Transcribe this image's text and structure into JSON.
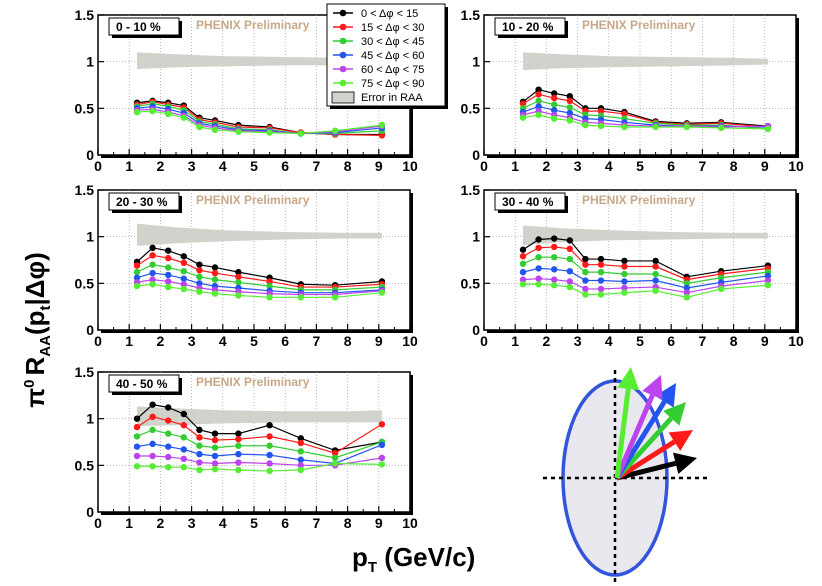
{
  "figure": {
    "ylabel_main": "π",
    "ylabel_sup": "0",
    "ylabel_r": "R",
    "ylabel_r_sub": "AA",
    "ylabel_rest_open": "(p",
    "ylabel_rest_sub": "t",
    "ylabel_rest_close": "|Δφ)",
    "xlabel_main": "p",
    "xlabel_sub": "T",
    "xlabel_rest": " (GeV/c)",
    "watermark": "PHENIX Preliminary"
  },
  "colors": {
    "series": [
      "#000000",
      "#ff1a1a",
      "#33cc33",
      "#2255ee",
      "#bb44ee",
      "#55ee33"
    ],
    "band": "#cfd3cc",
    "ellipse": "#3355dd",
    "ellipse_fill": "#e8e8ee",
    "watermark": "#c8a888"
  },
  "legend": {
    "entries": [
      "0 < Δφ < 15",
      "15 < Δφ < 30",
      "30 < Δφ < 45",
      "45 < Δφ < 60",
      "60 < Δφ < 75",
      "75 < Δφ < 90"
    ],
    "band_label": "Error in RAA"
  },
  "diagram": {
    "arrows": [
      "black-arrow",
      "red-arrow",
      "green-arrow",
      "blue-arrow",
      "violet-arrow",
      "lightgreen-arrow"
    ]
  },
  "chart_data": [
    {
      "type": "line",
      "panel_label": "0 - 10 %",
      "xlim": [
        0,
        10
      ],
      "ylim": [
        0,
        1.5
      ],
      "xticks": [
        0,
        1,
        2,
        3,
        4,
        5,
        6,
        7,
        8,
        9,
        10
      ],
      "yticks": [
        0,
        0.5,
        1,
        1.5
      ],
      "x": [
        1.25,
        1.75,
        2.25,
        2.75,
        3.25,
        3.75,
        4.5,
        5.5,
        6.5,
        7.6,
        9.1
      ],
      "series": [
        {
          "name": "0 < Δφ < 15",
          "values": [
            0.56,
            0.58,
            0.56,
            0.53,
            0.4,
            0.37,
            0.32,
            0.3,
            0.24,
            0.22,
            0.22
          ]
        },
        {
          "name": "15 < Δφ < 30",
          "values": [
            0.54,
            0.57,
            0.54,
            0.51,
            0.38,
            0.35,
            0.3,
            0.29,
            0.24,
            0.22,
            0.21
          ]
        },
        {
          "name": "30 < Δφ < 45",
          "values": [
            0.52,
            0.55,
            0.52,
            0.48,
            0.36,
            0.33,
            0.28,
            0.27,
            0.23,
            0.23,
            0.26
          ]
        },
        {
          "name": "45 < Δφ < 60",
          "values": [
            0.5,
            0.52,
            0.49,
            0.45,
            0.34,
            0.31,
            0.27,
            0.26,
            0.23,
            0.24,
            0.29
          ]
        },
        {
          "name": "60 < Δφ < 75",
          "values": [
            0.48,
            0.49,
            0.46,
            0.42,
            0.32,
            0.29,
            0.26,
            0.25,
            0.23,
            0.25,
            0.31
          ]
        },
        {
          "name": "75 < Δφ < 90",
          "values": [
            0.46,
            0.47,
            0.44,
            0.4,
            0.3,
            0.27,
            0.25,
            0.24,
            0.23,
            0.26,
            0.32
          ]
        }
      ],
      "band": {
        "x": [
          1.25,
          2.5,
          4,
          6,
          8,
          9.1
        ],
        "lo": [
          0.92,
          0.94,
          0.95,
          0.96,
          0.96,
          0.97
        ],
        "hi": [
          1.1,
          1.08,
          1.06,
          1.05,
          1.04,
          1.03
        ]
      },
      "has_legend": true
    },
    {
      "type": "line",
      "panel_label": "10 - 20 %",
      "xlim": [
        0,
        10
      ],
      "ylim": [
        0,
        1.5
      ],
      "xticks": [
        0,
        1,
        2,
        3,
        4,
        5,
        6,
        7,
        8,
        9,
        10
      ],
      "yticks": [
        0,
        0.5,
        1,
        1.5
      ],
      "x": [
        1.25,
        1.75,
        2.25,
        2.75,
        3.25,
        3.75,
        4.5,
        5.5,
        6.5,
        7.6,
        9.1
      ],
      "series": [
        {
          "name": "0 < Δφ < 15",
          "values": [
            0.57,
            0.7,
            0.66,
            0.63,
            0.5,
            0.5,
            0.46,
            0.36,
            0.34,
            0.35,
            0.31
          ]
        },
        {
          "name": "15 < Δφ < 30",
          "values": [
            0.55,
            0.65,
            0.61,
            0.58,
            0.47,
            0.47,
            0.44,
            0.35,
            0.33,
            0.34,
            0.3
          ]
        },
        {
          "name": "30 < Δφ < 45",
          "values": [
            0.5,
            0.58,
            0.54,
            0.51,
            0.43,
            0.42,
            0.39,
            0.34,
            0.32,
            0.32,
            0.28
          ]
        },
        {
          "name": "45 < Δφ < 60",
          "values": [
            0.46,
            0.52,
            0.48,
            0.45,
            0.39,
            0.38,
            0.35,
            0.32,
            0.31,
            0.31,
            0.3
          ]
        },
        {
          "name": "60 < Δφ < 75",
          "values": [
            0.43,
            0.47,
            0.43,
            0.4,
            0.35,
            0.34,
            0.32,
            0.31,
            0.31,
            0.3,
            0.31
          ]
        },
        {
          "name": "75 < Δφ < 90",
          "values": [
            0.4,
            0.43,
            0.39,
            0.37,
            0.32,
            0.31,
            0.3,
            0.3,
            0.3,
            0.29,
            0.28
          ]
        }
      ],
      "band": {
        "x": [
          1.25,
          2.5,
          4,
          6,
          8,
          9.1
        ],
        "lo": [
          0.91,
          0.93,
          0.94,
          0.95,
          0.96,
          0.97
        ],
        "hi": [
          1.1,
          1.08,
          1.06,
          1.05,
          1.04,
          1.03
        ]
      },
      "has_legend": false
    },
    {
      "type": "line",
      "panel_label": "20 - 30 %",
      "xlim": [
        0,
        10
      ],
      "ylim": [
        0,
        1.5
      ],
      "xticks": [
        0,
        1,
        2,
        3,
        4,
        5,
        6,
        7,
        8,
        9,
        10
      ],
      "yticks": [
        0,
        0.5,
        1,
        1.5
      ],
      "x": [
        1.25,
        1.75,
        2.25,
        2.75,
        3.25,
        3.75,
        4.5,
        5.5,
        6.5,
        7.6,
        9.1
      ],
      "series": [
        {
          "name": "0 < Δφ < 15",
          "values": [
            0.73,
            0.88,
            0.85,
            0.79,
            0.7,
            0.67,
            0.62,
            0.56,
            0.49,
            0.48,
            0.52
          ]
        },
        {
          "name": "15 < Δφ < 30",
          "values": [
            0.69,
            0.8,
            0.77,
            0.72,
            0.64,
            0.61,
            0.57,
            0.52,
            0.46,
            0.46,
            0.49
          ]
        },
        {
          "name": "30 < Δφ < 45",
          "values": [
            0.62,
            0.7,
            0.67,
            0.63,
            0.57,
            0.54,
            0.51,
            0.47,
            0.43,
            0.43,
            0.46
          ]
        },
        {
          "name": "45 < Δφ < 60",
          "values": [
            0.56,
            0.61,
            0.59,
            0.55,
            0.5,
            0.47,
            0.45,
            0.42,
            0.4,
            0.4,
            0.43
          ]
        },
        {
          "name": "60 < Δφ < 75",
          "values": [
            0.51,
            0.54,
            0.52,
            0.49,
            0.45,
            0.43,
            0.41,
            0.39,
            0.38,
            0.38,
            0.42
          ]
        },
        {
          "name": "75 < Δφ < 90",
          "values": [
            0.47,
            0.49,
            0.46,
            0.44,
            0.41,
            0.39,
            0.37,
            0.35,
            0.35,
            0.35,
            0.4
          ]
        }
      ],
      "band": {
        "x": [
          1.25,
          2.5,
          4,
          6,
          8,
          9.1
        ],
        "lo": [
          0.9,
          0.93,
          0.95,
          0.97,
          0.98,
          0.98
        ],
        "hi": [
          1.14,
          1.1,
          1.07,
          1.05,
          1.04,
          1.04
        ]
      },
      "has_legend": false
    },
    {
      "type": "line",
      "panel_label": "30 - 40 %",
      "xlim": [
        0,
        10
      ],
      "ylim": [
        0,
        1.5
      ],
      "xticks": [
        0,
        1,
        2,
        3,
        4,
        5,
        6,
        7,
        8,
        9,
        10
      ],
      "yticks": [
        0,
        0.5,
        1,
        1.5
      ],
      "x": [
        1.25,
        1.75,
        2.25,
        2.75,
        3.25,
        3.75,
        4.5,
        5.5,
        6.5,
        7.6,
        9.1
      ],
      "series": [
        {
          "name": "0 < Δφ < 15",
          "values": [
            0.86,
            0.97,
            0.98,
            0.96,
            0.76,
            0.76,
            0.74,
            0.74,
            0.57,
            0.63,
            0.69
          ]
        },
        {
          "name": "15 < Δφ < 30",
          "values": [
            0.79,
            0.88,
            0.89,
            0.87,
            0.7,
            0.7,
            0.68,
            0.68,
            0.54,
            0.6,
            0.66
          ]
        },
        {
          "name": "30 < Δφ < 45",
          "values": [
            0.71,
            0.78,
            0.78,
            0.76,
            0.62,
            0.62,
            0.6,
            0.6,
            0.5,
            0.56,
            0.62
          ]
        },
        {
          "name": "45 < Δφ < 60",
          "values": [
            0.62,
            0.66,
            0.65,
            0.63,
            0.53,
            0.53,
            0.52,
            0.53,
            0.45,
            0.51,
            0.58
          ]
        },
        {
          "name": "60 < Δφ < 75",
          "values": [
            0.54,
            0.55,
            0.54,
            0.52,
            0.44,
            0.44,
            0.45,
            0.46,
            0.4,
            0.47,
            0.53
          ]
        },
        {
          "name": "75 < Δφ < 90",
          "values": [
            0.49,
            0.49,
            0.48,
            0.46,
            0.38,
            0.38,
            0.4,
            0.42,
            0.35,
            0.44,
            0.48
          ]
        }
      ],
      "band": {
        "x": [
          1.25,
          2.5,
          4,
          6,
          8,
          9.1
        ],
        "lo": [
          0.91,
          0.94,
          0.96,
          0.97,
          0.98,
          0.98
        ],
        "hi": [
          1.12,
          1.09,
          1.07,
          1.05,
          1.04,
          1.04
        ]
      },
      "has_legend": false
    },
    {
      "type": "line",
      "panel_label": "40 - 50 %",
      "xlim": [
        0,
        10
      ],
      "ylim": [
        0,
        1.5
      ],
      "xticks": [
        0,
        1,
        2,
        3,
        4,
        5,
        6,
        7,
        8,
        9,
        10
      ],
      "yticks": [
        0,
        0.5,
        1,
        1.5
      ],
      "x": [
        1.25,
        1.75,
        2.25,
        2.75,
        3.25,
        3.75,
        4.5,
        5.5,
        6.5,
        7.6,
        9.1
      ],
      "series": [
        {
          "name": "0 < Δφ < 15",
          "values": [
            1.0,
            1.15,
            1.12,
            1.05,
            0.88,
            0.84,
            0.84,
            0.93,
            0.79,
            0.66,
            0.75
          ]
        },
        {
          "name": "15 < Δφ < 30",
          "values": [
            0.91,
            1.02,
            0.98,
            0.93,
            0.8,
            0.77,
            0.78,
            0.81,
            0.74,
            0.63,
            0.94
          ]
        },
        {
          "name": "30 < Δφ < 45",
          "values": [
            0.81,
            0.88,
            0.84,
            0.8,
            0.71,
            0.69,
            0.71,
            0.71,
            0.65,
            0.58,
            0.75
          ]
        },
        {
          "name": "45 < Δφ < 60",
          "values": [
            0.7,
            0.73,
            0.7,
            0.67,
            0.62,
            0.6,
            0.62,
            0.61,
            0.56,
            0.52,
            0.72
          ]
        },
        {
          "name": "60 < Δφ < 75",
          "values": [
            0.6,
            0.6,
            0.59,
            0.57,
            0.53,
            0.52,
            0.53,
            0.52,
            0.5,
            0.5,
            0.58
          ]
        },
        {
          "name": "75 < Δφ < 90",
          "values": [
            0.49,
            0.49,
            0.48,
            0.48,
            0.45,
            0.46,
            0.45,
            0.44,
            0.45,
            0.52,
            0.51
          ]
        }
      ],
      "band": {
        "x": [
          1.25,
          2.5,
          4,
          6,
          8,
          9.1
        ],
        "lo": [
          0.92,
          0.93,
          0.95,
          0.96,
          0.96,
          0.96
        ],
        "hi": [
          1.13,
          1.11,
          1.09,
          1.08,
          1.08,
          1.09
        ]
      },
      "has_legend": false
    }
  ]
}
